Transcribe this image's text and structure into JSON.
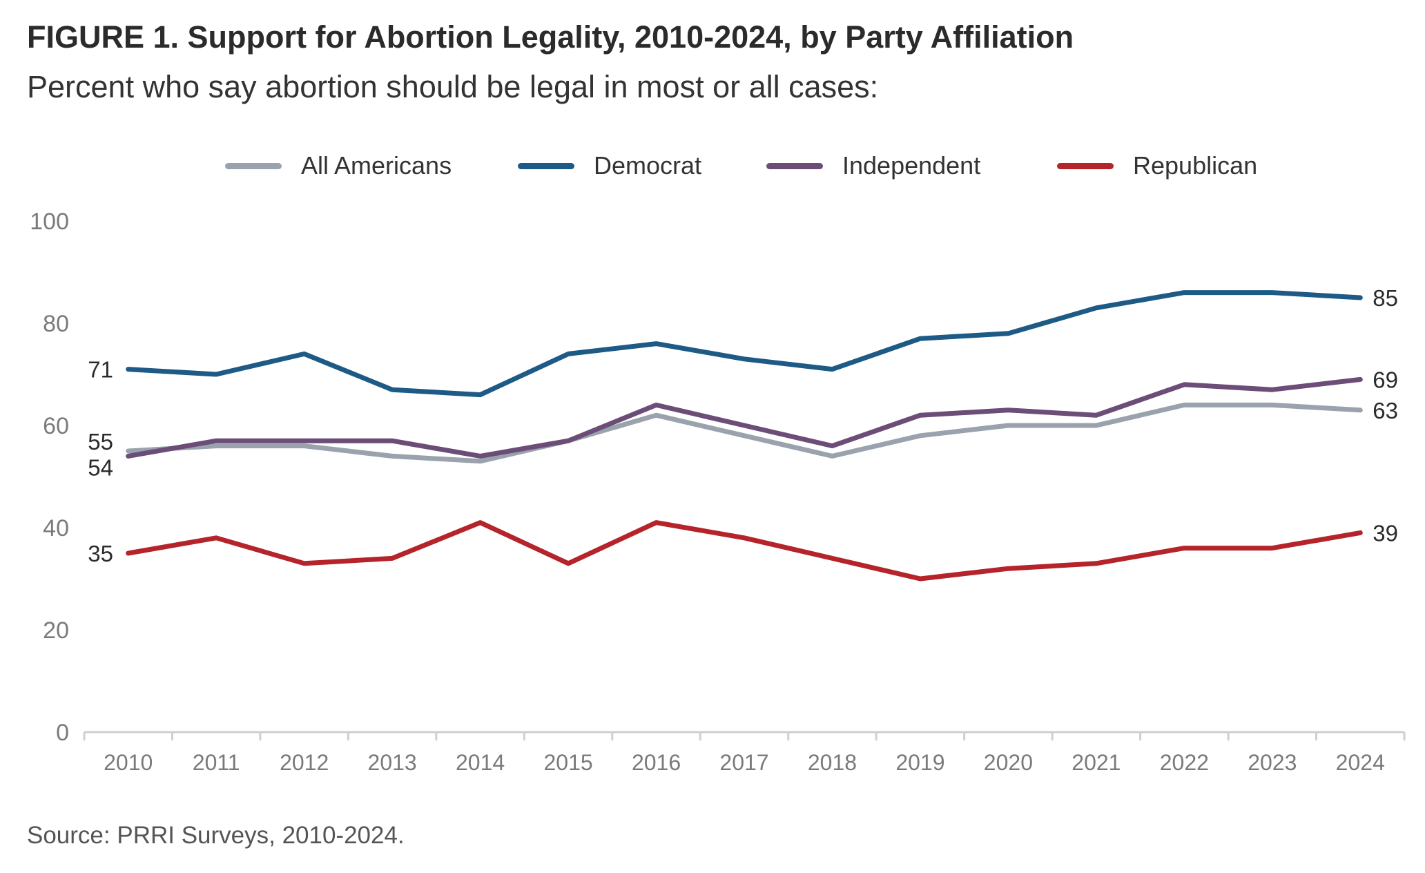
{
  "title": "FIGURE 1.  Support for Abortion Legality, 2010-2024, by Party Affiliation",
  "subtitle": "Percent who say abortion should be legal in most or all cases:",
  "source": "Source: PRRI Surveys, 2010-2024.",
  "colors": {
    "all_americans": "#9aa3ad",
    "democrat": "#1d5a85",
    "independent": "#6b4d78",
    "republican": "#b5242b",
    "axis": "#cfcfcf",
    "tick_text": "#7a7a7a",
    "label_text": "#2b2b2b"
  },
  "chart_data": {
    "type": "line",
    "x": [
      "2010",
      "2011",
      "2012",
      "2013",
      "2014",
      "2015",
      "2016",
      "2017",
      "2018",
      "2019",
      "2020",
      "2021",
      "2022",
      "2023",
      "2024"
    ],
    "ylim": [
      0,
      100
    ],
    "yticks": [
      "0",
      "20",
      "40",
      "60",
      "80",
      "100"
    ],
    "grid": false,
    "legend_position": "top",
    "series": [
      {
        "name": "All Americans",
        "color_key": "all_americans",
        "values": [
          55,
          56,
          56,
          54,
          53,
          57,
          62,
          58,
          54,
          58,
          60,
          60,
          64,
          64,
          63
        ],
        "start_label": "",
        "end_label": "63"
      },
      {
        "name": "Democrat",
        "color_key": "democrat",
        "values": [
          71,
          70,
          74,
          67,
          66,
          74,
          76,
          73,
          71,
          77,
          78,
          83,
          86,
          86,
          85
        ],
        "start_label": "71",
        "end_label": "85"
      },
      {
        "name": "Independent",
        "color_key": "independent",
        "values": [
          54,
          57,
          57,
          57,
          54,
          57,
          64,
          60,
          56,
          62,
          63,
          62,
          68,
          67,
          69
        ],
        "start_label": "54",
        "end_label": "69"
      },
      {
        "name": "Republican",
        "color_key": "republican",
        "values": [
          35,
          38,
          33,
          34,
          41,
          33,
          41,
          38,
          34,
          30,
          32,
          33,
          36,
          36,
          39
        ],
        "start_label": "35",
        "end_label": "39"
      }
    ],
    "extra_start_labels": [
      {
        "text": "55",
        "value": 55
      }
    ]
  }
}
